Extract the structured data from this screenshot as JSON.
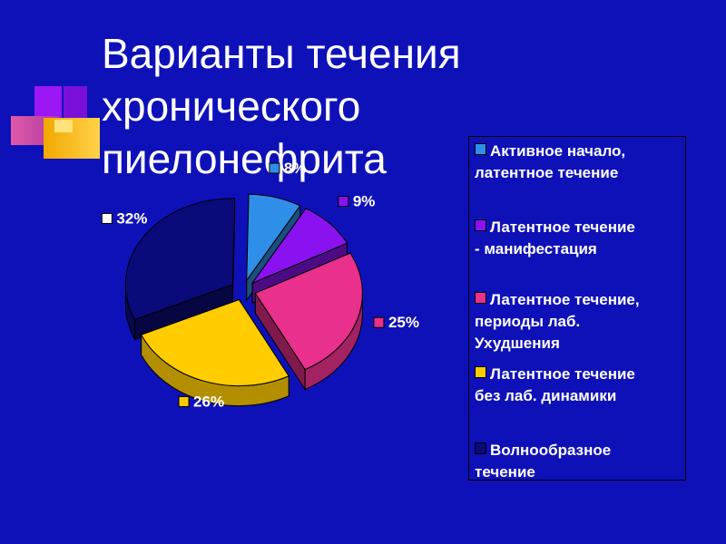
{
  "title": {
    "lines": [
      "Варианты течения",
      "хронического",
      "пиелонефрита"
    ]
  },
  "chart_data": {
    "type": "pie",
    "style": "3d-exploded",
    "categories": [
      "Активное начало, латентное течение",
      "Латентное течение - манифестация",
      "Латентное течение, периоды лаб. Ухудшения",
      "Латентное течение без лаб. динамики",
      "Волнообразное течение"
    ],
    "values": [
      8,
      9,
      25,
      26,
      32
    ],
    "labels": [
      "8%",
      "9%",
      "25%",
      "26%",
      "32%"
    ],
    "colors": [
      "#2f8fe8",
      "#8a12f0",
      "#e8308c",
      "#ffcc00",
      "#0a0a7a"
    ],
    "legend_position": "right"
  },
  "legend": {
    "items": [
      {
        "lines": [
          "Активное начало,",
          "латентное течение"
        ],
        "color": "#2f8fe8"
      },
      {
        "lines": [
          "Латентное течение",
          "- манифестация"
        ],
        "color": "#8a12f0"
      },
      {
        "lines": [
          "Латентное течение,",
          "периоды лаб.",
          "Ухудшения"
        ],
        "color": "#e8308c"
      },
      {
        "lines": [
          "Латентное течение",
          "без лаб. динамики"
        ],
        "color": "#ffcc00"
      },
      {
        "lines": [
          "Волнообразное",
          "течение"
        ],
        "color": "#0a0a7a"
      }
    ]
  }
}
